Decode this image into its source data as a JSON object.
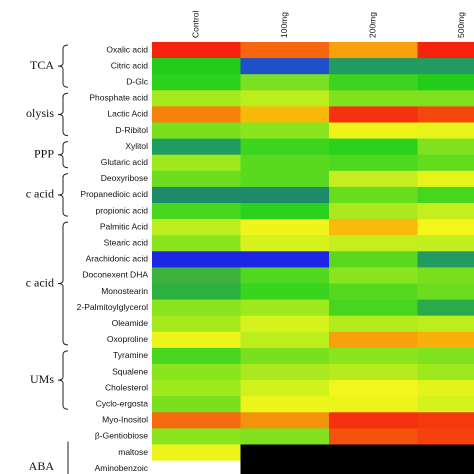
{
  "chart_data": {
    "type": "heatmap",
    "columns": [
      "Control",
      "100mg",
      "200mg",
      "500mg"
    ],
    "rows": [
      "Oxalic acid",
      "Citric acid",
      "D-Glc",
      "Phosphate acid",
      "Lactic Acid",
      "D-Ribitol",
      "Xylitol",
      "Glutaric acid",
      "Deoxyribose",
      "Propanedioic acid",
      "propionic acid",
      "Palmitic Acid",
      "Stearic acid",
      "Arachidonic acid",
      "Doconexent DHA",
      "Monostearin",
      "2-Palmitoylglycerol",
      "Oleamide",
      "Oxoproline",
      "Tyramine",
      "Squalene",
      "Cholesterol",
      "Cyclo-ergosta",
      "Myo-Inositol",
      "β-Gentiobiose",
      "maltose",
      "Aminobenzoic"
    ],
    "cell_colors": [
      [
        "#f5220e",
        "#f5660e",
        "#f9a10c",
        "#f5220e"
      ],
      [
        "#22cc1a",
        "#1e50c8",
        "#229a60",
        "#229a60"
      ],
      [
        "#2ad21e",
        "#7ae022",
        "#3cd41e",
        "#22cc1a"
      ],
      [
        "#a6ea1e",
        "#bcee1e",
        "#80e21e",
        "#7ee01e"
      ],
      [
        "#f8800c",
        "#f7ba0a",
        "#f5300e",
        "#f5460e"
      ],
      [
        "#7ae01e",
        "#8ae41e",
        "#ecf41a",
        "#e6f41a"
      ],
      [
        "#1f9c60",
        "#3cd41e",
        "#2ad21e",
        "#80e21e"
      ],
      [
        "#9ee81e",
        "#5ada1e",
        "#4ed81e",
        "#62dc1e"
      ],
      [
        "#6cdc1e",
        "#5ada1e",
        "#c6ee1e",
        "#e6f41a"
      ],
      [
        "#1e8a6a",
        "#1e8a6a",
        "#66de1e",
        "#46d61e"
      ],
      [
        "#48d61e",
        "#2ad21e",
        "#ace81e",
        "#c4ee1e"
      ],
      [
        "#bcee1e",
        "#f1f41a",
        "#f9ba0a",
        "#f3f61a"
      ],
      [
        "#8ae41e",
        "#d6f21c",
        "#c6ee1e",
        "#c0ee1e"
      ],
      [
        "#1e26e6",
        "#1e26e6",
        "#5ad81e",
        "#229a60"
      ],
      [
        "#3cb23c",
        "#4ed81e",
        "#8ae41e",
        "#7ae01e"
      ],
      [
        "#2cb040",
        "#38d41e",
        "#56d81e",
        "#6cdc1e"
      ],
      [
        "#8ae41e",
        "#9ee81e",
        "#46d61e",
        "#2aaa48"
      ],
      [
        "#a6ea1e",
        "#d6f21c",
        "#b2ec1e",
        "#bcee1e"
      ],
      [
        "#ecf41a",
        "#bcee1e",
        "#f9a10c",
        "#f9b00a"
      ],
      [
        "#48d61e",
        "#7ae01e",
        "#8ae41e",
        "#80e21e"
      ],
      [
        "#8ae41e",
        "#ace81e",
        "#b6ec1e",
        "#a0e81e"
      ],
      [
        "#9ee81e",
        "#d0f21c",
        "#f2f61a",
        "#e2f41a"
      ],
      [
        "#7ae01e",
        "#ecf41a",
        "#ecf41a",
        "#d6f21c"
      ],
      [
        "#f56a0e",
        "#f5920c",
        "#f5300e",
        "#f5380e"
      ],
      [
        "#8ae41e",
        "#80e21e",
        "#f5520e",
        "#f5420e"
      ],
      [
        "#eef41a",
        "#000000",
        "#000000",
        "#000000"
      ],
      [
        "#ffffff",
        "#000000",
        "#000000",
        "#000000"
      ]
    ],
    "groups": [
      {
        "label": "TCA",
        "rows": [
          0,
          2
        ]
      },
      {
        "label": "olysis",
        "rows": [
          3,
          5
        ]
      },
      {
        "label": "PPP",
        "rows": [
          6,
          7
        ]
      },
      {
        "label": "c acid",
        "rows": [
          8,
          10
        ]
      },
      {
        "label": "c acid",
        "rows": [
          11,
          18
        ]
      },
      {
        "label": "UMs",
        "rows": [
          19,
          22
        ]
      },
      {
        "label": "ABA",
        "rows": [
          25,
          26
        ]
      }
    ]
  }
}
